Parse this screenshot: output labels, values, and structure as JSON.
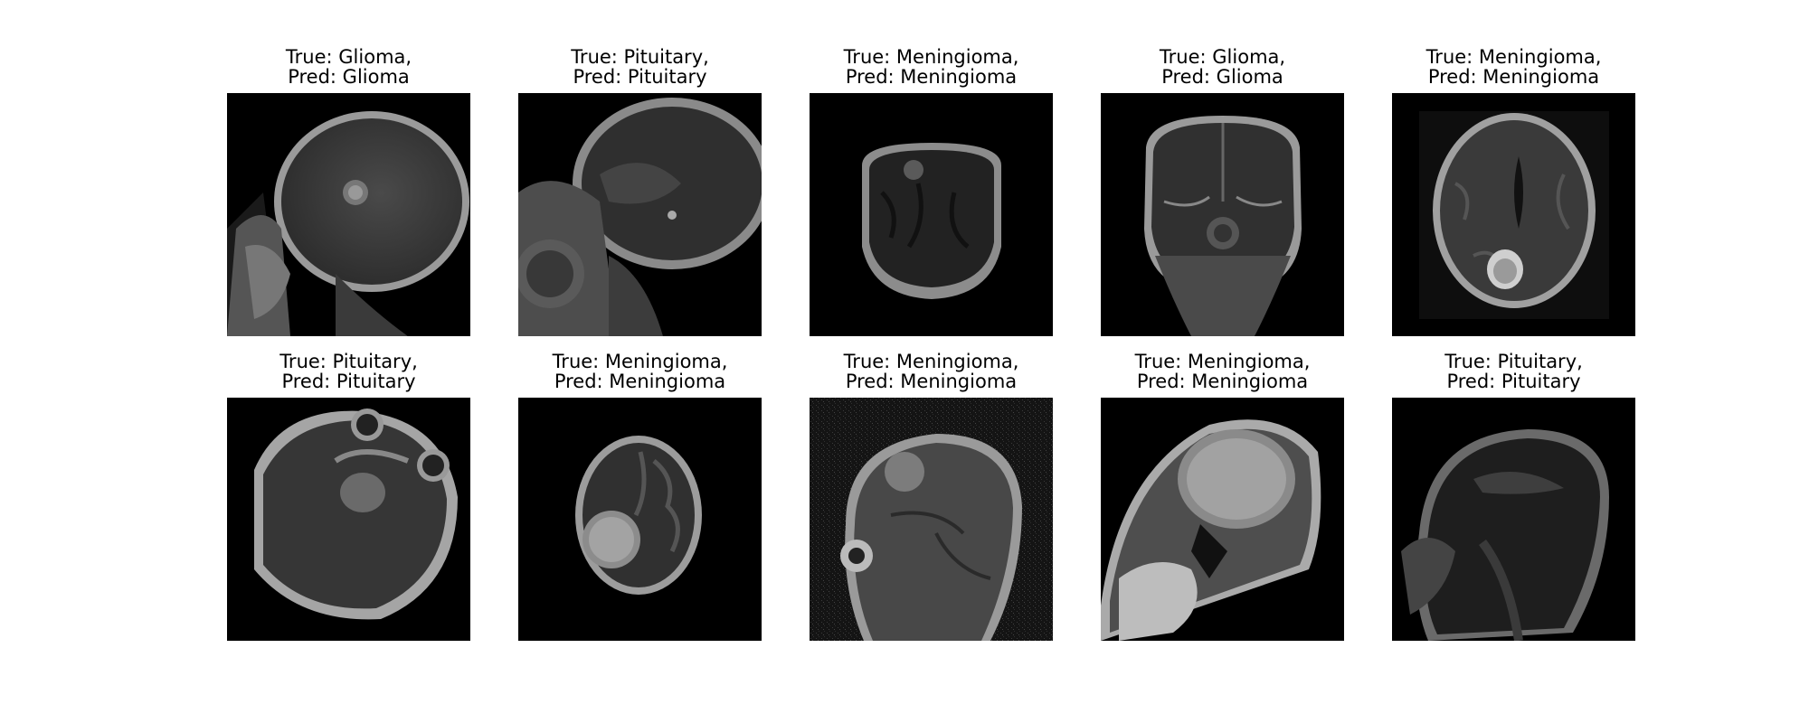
{
  "figure": {
    "panels": [
      {
        "true_text": "True: Glioma,",
        "pred_text": "Pred: Glioma",
        "scan_view": "sagittal-brain-with-lesion"
      },
      {
        "true_text": "True: Pituitary,",
        "pred_text": "Pred: Pituitary",
        "scan_view": "sagittal-brain"
      },
      {
        "true_text": "True: Meningioma,",
        "pred_text": "Pred: Meningioma",
        "scan_view": "coronal-small-head"
      },
      {
        "true_text": "True: Glioma,",
        "pred_text": "Pred: Glioma",
        "scan_view": "coronal-brain"
      },
      {
        "true_text": "True: Meningioma,",
        "pred_text": "Pred: Meningioma",
        "scan_view": "axial-brain-with-lesion"
      },
      {
        "true_text": "True: Pituitary,",
        "pred_text": "Pred: Pituitary",
        "scan_view": "axial-skull-base"
      },
      {
        "true_text": "True: Meningioma,",
        "pred_text": "Pred: Meningioma",
        "scan_view": "axial-small-with-lesion"
      },
      {
        "true_text": "True: Meningioma,",
        "pred_text": "Pred: Meningioma",
        "scan_view": "sagittal-noisy-with-lesion"
      },
      {
        "true_text": "True: Meningioma,",
        "pred_text": "Pred: Meningioma",
        "scan_view": "sagittal-large-lesion"
      },
      {
        "true_text": "True: Pituitary,",
        "pred_text": "Pred: Pituitary",
        "scan_view": "sagittal-dark"
      }
    ]
  }
}
